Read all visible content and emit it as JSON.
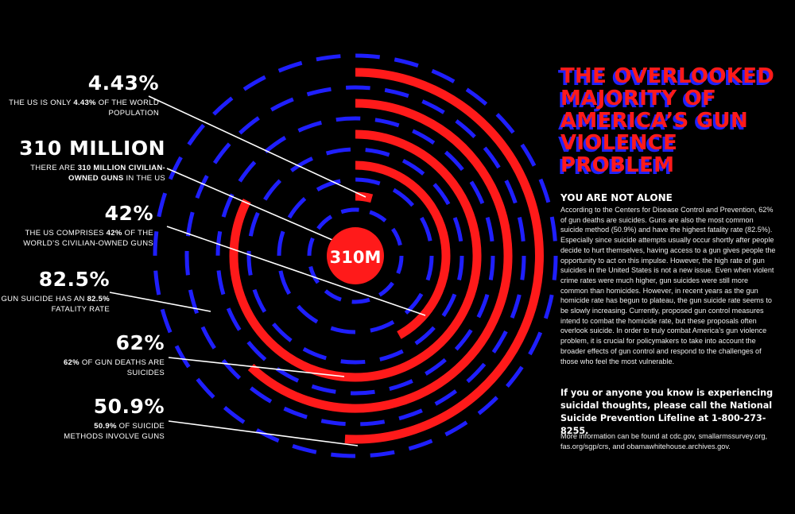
{
  "center_label": "310M",
  "stats": [
    {
      "value": "4.43%",
      "desc_pre": "THE US IS ONLY ",
      "desc_bold": "4.43%",
      "desc_post": " OF THE WORLD POPULATION"
    },
    {
      "value": "310 MILLION",
      "desc_pre": "THERE ARE ",
      "desc_bold": "310 MILLION CIVILIAN-OWNED GUNS",
      "desc_post": " IN THE US"
    },
    {
      "value": "42%",
      "desc_pre": "THE US COMPRISES ",
      "desc_bold": "42%",
      "desc_post": " OF THE WORLD’S CIVILIAN-OWNED GUNS"
    },
    {
      "value": "82.5%",
      "desc_pre": "GUN SUICIDE HAS AN ",
      "desc_bold": "82.5%",
      "desc_post": " FATALITY RATE"
    },
    {
      "value": "62%",
      "desc_pre": "",
      "desc_bold": "62%",
      "desc_post": " OF GUN DEATHS ARE SUICIDES"
    },
    {
      "value": "50.9%",
      "desc_pre": "",
      "desc_bold": "50.9%",
      "desc_post": " OF SUICIDE METHODS INVOLVE GUNS"
    }
  ],
  "title_lines": [
    "THE OVERLOOKED",
    "MAJORITY OF",
    "AMERICA’S GUN",
    "VIOLENCE PROBLEM"
  ],
  "section_heading": "YOU ARE NOT ALONE",
  "body": "According to the Centers for Disease Control and Prevention, 62% of gun deaths are suicides. Guns are also the most common suicide method (50.9%) and have the highest fatality rate (82.5%). Especially since suicide attempts usually occur shortly after people decide to hurt themselves, having access to a gun gives people the opportunity to act on this impulse. However, the high rate of gun suicides in the United States is not a new issue. Even when violent crime rates were much higher, gun suicides were still more common than homicides. However, in recent years as the gun homicide rate has begun to plateau, the gun suicide rate seems to be slowly increasing. Currently, proposed gun control measures intend to combat the homicide rate, but these proposals often overlook suicide. In order to truly combat America’s gun violence problem, it is crucial for policymakers to take into account the broader effects of gun control and respond to the challenges of those who feel the most vulnerable.",
  "help_text": "If you or anyone you know is experiencing suicidal thoughts, please call the National Suicide Prevention Lifeline at 1-800-273-8255.",
  "more_info": "More information can be found at cdc.gov, smallarmssurvey.org, fas.org/sgp/crs, and obamawhitehouse.archives.gov.",
  "rings": [
    {
      "label": "4.43%",
      "fraction": 0.0443
    },
    {
      "label": "42%",
      "fraction": 0.42
    },
    {
      "label": "82.5%",
      "fraction": 0.825
    },
    {
      "label": "62%",
      "fraction": 0.62
    },
    {
      "label": "50.9%",
      "fraction": 0.509
    }
  ],
  "colors": {
    "red": "#ff1a1a",
    "blue": "#1f1fff",
    "bg": "#000000",
    "text": "#ffffff"
  }
}
